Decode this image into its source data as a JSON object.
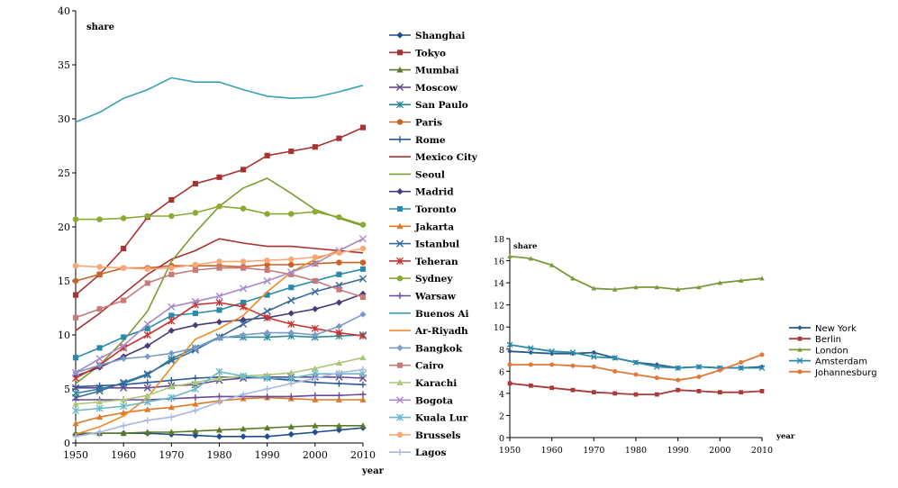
{
  "chart_data": [
    {
      "type": "line",
      "ylabel": "share",
      "xlabel": "year",
      "xlim": [
        1950,
        2010
      ],
      "ylim": [
        0,
        40
      ],
      "xticks": [
        "1950",
        "1960",
        "1970",
        "1980",
        "1990",
        "2000",
        "2010"
      ],
      "yticks": [
        "0",
        "5",
        "10",
        "15",
        "20",
        "25",
        "30",
        "35",
        "40"
      ],
      "x": [
        1950,
        1955,
        1960,
        1965,
        1970,
        1975,
        1980,
        1985,
        1990,
        1995,
        2000,
        2005,
        2010
      ],
      "legend": "right",
      "series": [
        {
          "name": "Shanghai",
          "color": "#1f4e8c",
          "marker": "diamond",
          "values": [
            0.8,
            0.9,
            0.9,
            0.9,
            0.8,
            0.7,
            0.6,
            0.6,
            0.6,
            0.8,
            1.0,
            1.2,
            1.4
          ]
        },
        {
          "name": "Tokyo",
          "color": "#a83232",
          "marker": "square",
          "values": [
            13.7,
            15.6,
            18.0,
            20.9,
            22.5,
            24.0,
            24.6,
            25.3,
            26.6,
            27.0,
            27.4,
            28.2,
            29.2
          ]
        },
        {
          "name": "Mumbai",
          "color": "#5a7a2a",
          "marker": "triangle",
          "values": [
            0.9,
            0.9,
            0.9,
            1.0,
            1.0,
            1.1,
            1.2,
            1.3,
            1.4,
            1.5,
            1.6,
            1.6,
            1.6
          ]
        },
        {
          "name": "Moscow",
          "color": "#6a4a8a",
          "marker": "x",
          "values": [
            5.1,
            5.1,
            5.1,
            5.1,
            5.3,
            5.4,
            5.8,
            6.0,
            6.1,
            6.1,
            6.1,
            6.1,
            6.0
          ]
        },
        {
          "name": "San Paulo",
          "color": "#2a8a9a",
          "marker": "star",
          "values": [
            4.6,
            5.0,
            5.5,
            6.3,
            7.8,
            8.8,
            9.8,
            9.8,
            9.8,
            9.9,
            9.8,
            9.9,
            10.0
          ]
        },
        {
          "name": "Paris",
          "color": "#c86428",
          "marker": "circle",
          "values": [
            15.0,
            15.6,
            16.2,
            16.2,
            16.4,
            16.4,
            16.4,
            16.3,
            16.5,
            16.5,
            16.6,
            16.7,
            16.7
          ]
        },
        {
          "name": "Rome",
          "color": "#2a5a9a",
          "marker": "plus",
          "values": [
            5.2,
            5.3,
            5.4,
            5.6,
            5.8,
            6.0,
            6.1,
            6.1,
            6.0,
            5.8,
            5.6,
            5.5,
            5.4
          ]
        },
        {
          "name": "Mexico City",
          "color": "#a83232",
          "marker": "none",
          "values": [
            10.4,
            12.0,
            13.8,
            15.6,
            17.0,
            17.8,
            18.9,
            18.5,
            18.2,
            18.2,
            18.0,
            17.8,
            17.6
          ]
        },
        {
          "name": "Seoul",
          "color": "#7a9a32",
          "marker": "none",
          "values": [
            5.5,
            7.2,
            9.5,
            12.2,
            16.8,
            19.5,
            21.9,
            23.6,
            24.5,
            23.1,
            21.6,
            20.8,
            20.1
          ]
        },
        {
          "name": "Madrid",
          "color": "#4a3a7a",
          "marker": "diamond",
          "values": [
            6.2,
            7.0,
            8.0,
            9.0,
            10.4,
            10.9,
            11.2,
            11.4,
            11.6,
            12.0,
            12.4,
            13.0,
            13.8
          ]
        },
        {
          "name": "Toronto",
          "color": "#2a8aaa",
          "marker": "square",
          "values": [
            7.9,
            8.8,
            9.8,
            10.6,
            11.8,
            12.0,
            12.3,
            13.0,
            13.7,
            14.4,
            15.0,
            15.6,
            16.1
          ]
        },
        {
          "name": "Jakarta",
          "color": "#e07a28",
          "marker": "triangle",
          "values": [
            1.8,
            2.4,
            2.8,
            3.1,
            3.3,
            3.6,
            3.9,
            4.1,
            4.2,
            4.1,
            4.0,
            4.0,
            4.0
          ]
        },
        {
          "name": "Istanbul",
          "color": "#3a6a9a",
          "marker": "x",
          "values": [
            4.2,
            4.8,
            5.6,
            6.4,
            7.6,
            8.6,
            9.8,
            11.0,
            12.2,
            13.2,
            14.0,
            14.6,
            15.2
          ]
        },
        {
          "name": "Teheran",
          "color": "#c83232",
          "marker": "star",
          "values": [
            6.0,
            7.2,
            8.8,
            10.0,
            11.3,
            12.8,
            13.0,
            12.6,
            11.6,
            11.0,
            10.6,
            10.2,
            9.9
          ]
        },
        {
          "name": "Sydney",
          "color": "#8aaa32",
          "marker": "circle",
          "values": [
            20.7,
            20.7,
            20.8,
            21.0,
            21.0,
            21.3,
            21.9,
            21.7,
            21.2,
            21.2,
            21.4,
            20.9,
            20.2
          ]
        },
        {
          "name": "Warsaw",
          "color": "#6a4a9a",
          "marker": "plus",
          "values": [
            4.0,
            4.0,
            4.0,
            4.0,
            4.1,
            4.2,
            4.3,
            4.3,
            4.3,
            4.3,
            4.4,
            4.4,
            4.5
          ]
        },
        {
          "name": "Buenos Aires",
          "color": "#3aa0b8",
          "marker": "none",
          "values": [
            29.7,
            30.6,
            31.9,
            32.7,
            33.8,
            33.4,
            33.4,
            32.7,
            32.1,
            31.9,
            32.0,
            32.5,
            33.1
          ]
        },
        {
          "name": "Ar-Riyadh",
          "color": "#f08a28",
          "marker": "none",
          "values": [
            0.8,
            1.5,
            2.5,
            4.2,
            7.0,
            9.6,
            10.6,
            11.8,
            14.0,
            15.8,
            17.0,
            17.8,
            18.9
          ]
        },
        {
          "name": "Bangkok",
          "color": "#7a9ac8",
          "marker": "diamond",
          "values": [
            6.5,
            7.2,
            7.8,
            8.0,
            8.3,
            8.8,
            9.7,
            10.0,
            10.2,
            10.2,
            10.0,
            10.8,
            11.9
          ]
        },
        {
          "name": "Cairo",
          "color": "#c87a7a",
          "marker": "square",
          "values": [
            11.6,
            12.4,
            13.2,
            14.8,
            15.6,
            16.0,
            16.2,
            16.2,
            16.0,
            15.6,
            15.0,
            14.2,
            13.5
          ]
        },
        {
          "name": "Karachi",
          "color": "#aac878",
          "marker": "triangle",
          "values": [
            3.6,
            3.8,
            4.0,
            4.4,
            5.2,
            5.6,
            6.0,
            6.2,
            6.3,
            6.5,
            6.9,
            7.4,
            7.9
          ]
        },
        {
          "name": "Bogota",
          "color": "#a88ac8",
          "marker": "x",
          "values": [
            6.5,
            7.8,
            9.0,
            11.0,
            12.6,
            13.1,
            13.6,
            14.3,
            15.0,
            15.8,
            16.6,
            17.8,
            18.9
          ]
        },
        {
          "name": "Kuala Lumpur",
          "color": "#6ab8c8",
          "marker": "star",
          "values": [
            3.0,
            3.2,
            3.4,
            3.8,
            4.2,
            5.0,
            6.6,
            6.2,
            6.0,
            6.0,
            6.4,
            6.4,
            6.4
          ]
        },
        {
          "name": "Brussels",
          "color": "#f8a878",
          "marker": "circle",
          "values": [
            16.4,
            16.3,
            16.2,
            16.1,
            16.2,
            16.5,
            16.8,
            16.8,
            16.9,
            17.0,
            17.2,
            17.6,
            18.0
          ]
        },
        {
          "name": "Lagos",
          "color": "#a8b8e0",
          "marker": "plus",
          "values": [
            0.6,
            1.0,
            1.6,
            2.1,
            2.4,
            3.0,
            3.8,
            4.5,
            5.0,
            5.5,
            6.0,
            6.5,
            6.8
          ]
        }
      ]
    },
    {
      "type": "line",
      "ylabel": "share",
      "xlabel": "year",
      "xlim": [
        1950,
        2010
      ],
      "ylim": [
        0,
        18
      ],
      "xticks": [
        "1950",
        "1960",
        "1970",
        "1980",
        "1990",
        "2000",
        "2010"
      ],
      "yticks": [
        "0",
        "2",
        "4",
        "6",
        "8",
        "10",
        "12",
        "14",
        "16",
        "18"
      ],
      "x": [
        1950,
        1955,
        1960,
        1965,
        1970,
        1975,
        1980,
        1985,
        1990,
        1995,
        2000,
        2005,
        2010
      ],
      "legend": "right",
      "series": [
        {
          "name": "New York",
          "color": "#2a5a8a",
          "marker": "diamond",
          "values": [
            7.8,
            7.7,
            7.6,
            7.6,
            7.7,
            7.2,
            6.8,
            6.6,
            6.3,
            6.4,
            6.3,
            6.3,
            6.4
          ]
        },
        {
          "name": "Berlin",
          "color": "#a83a3a",
          "marker": "square",
          "values": [
            4.9,
            4.7,
            4.5,
            4.3,
            4.1,
            4.0,
            3.9,
            3.9,
            4.3,
            4.2,
            4.1,
            4.1,
            4.2
          ]
        },
        {
          "name": "London",
          "color": "#7a9a3a",
          "marker": "triangle",
          "values": [
            16.4,
            16.2,
            15.6,
            14.4,
            13.5,
            13.4,
            13.6,
            13.6,
            13.4,
            13.6,
            14.0,
            14.2,
            14.4
          ]
        },
        {
          "name": "Amsterdam",
          "color": "#2a8aaa",
          "marker": "x",
          "values": [
            8.4,
            8.1,
            7.8,
            7.7,
            7.3,
            7.2,
            6.8,
            6.4,
            6.3,
            6.4,
            6.3,
            6.3,
            6.3
          ]
        },
        {
          "name": "Johannesburg",
          "color": "#e07a3a",
          "marker": "circle",
          "values": [
            6.6,
            6.6,
            6.6,
            6.5,
            6.4,
            6.0,
            5.7,
            5.4,
            5.2,
            5.5,
            6.1,
            6.8,
            7.5
          ]
        }
      ]
    }
  ],
  "legend_display": [
    "Shanghai",
    "Tokyo",
    "Mumbai",
    "Moscow",
    "San Paulo",
    "Paris",
    "Rome",
    "Mexico City",
    "Seoul",
    "Madrid",
    "Toronto",
    "Jakarta",
    "Istanbul",
    "Teheran",
    "Sydney",
    "Warsaw",
    "Buenos Ai",
    "Ar-Riyadh",
    "Bangkok",
    "Cairo",
    "Karachi",
    "Bogota",
    "Kuala Lur",
    "Brussels",
    "Lagos"
  ]
}
